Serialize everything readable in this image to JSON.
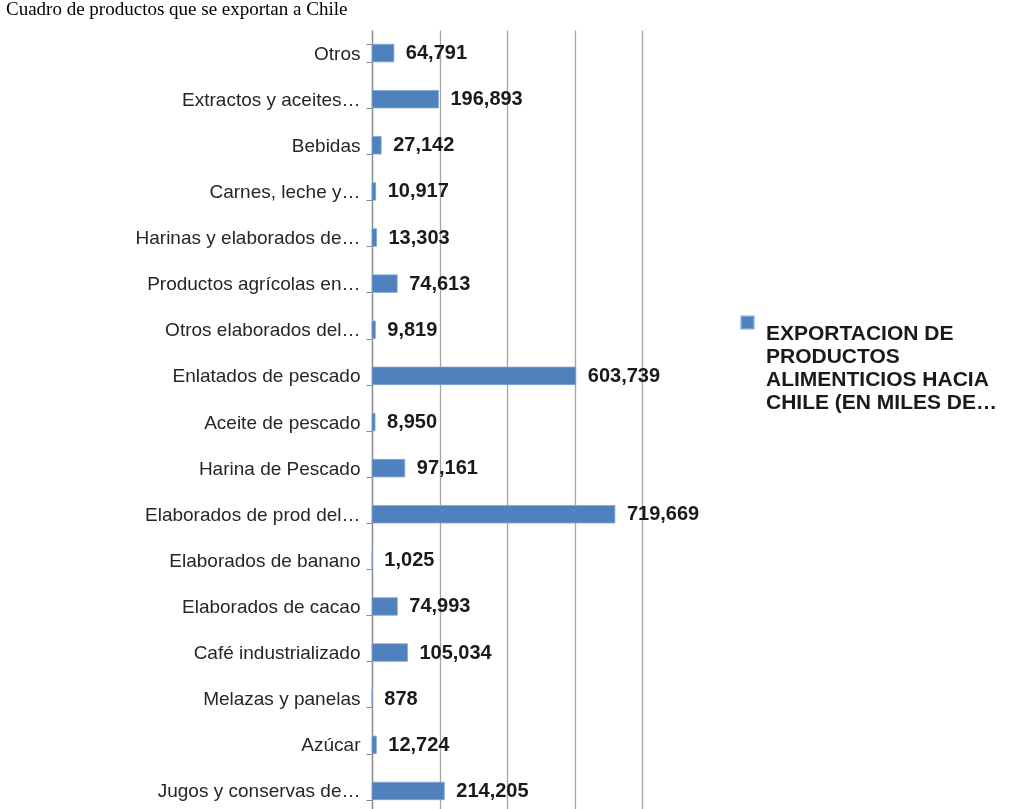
{
  "chart_data": {
    "type": "bar",
    "orientation": "horizontal",
    "title": "Cuadro de productos que se exportan a Chile",
    "categories": [
      "Otros",
      "Extractos y aceites…",
      "Bebidas",
      "Carnes, leche y…",
      "Harinas y elaborados de…",
      "Productos agrícolas en…",
      "Otros elaborados del…",
      "Enlatados de pescado",
      "Aceite de pescado",
      "Harina de Pescado",
      "Elaborados de prod del…",
      "Elaborados de banano",
      "Elaborados de cacao",
      "Café industrializado",
      "Melazas y panelas",
      "Azúcar",
      "Jugos y conservas de…"
    ],
    "series": [
      {
        "name": "EXPORTACION DE PRODUCTOS ALIMENTICIOS HACIA CHILE (EN MILES DE…",
        "color": "#4f81bd",
        "values": [
          64791,
          196893,
          27142,
          10917,
          13303,
          74613,
          9819,
          603739,
          8950,
          97161,
          719669,
          1025,
          74993,
          105034,
          878,
          12724,
          214205
        ],
        "value_labels": [
          "64,791",
          "196,893",
          "27,142",
          "10,917",
          "13,303",
          "74,613",
          "9,819",
          "603,739",
          "8,950",
          "97,161",
          "719,669",
          "1,025",
          "74,993",
          "105,034",
          "878",
          "12,724",
          "214,205"
        ]
      }
    ],
    "xlim": [
      0,
      800000
    ],
    "xticks": [
      {
        "value": 0,
        "label": null
      },
      {
        "value": 200000,
        "label": null
      },
      {
        "value": 400000,
        "label": null
      },
      {
        "value": 600000,
        "label": null
      },
      {
        "value": 800000,
        "label": null
      }
    ],
    "tick_labels": "y",
    "grid": "x",
    "legend": "right"
  }
}
